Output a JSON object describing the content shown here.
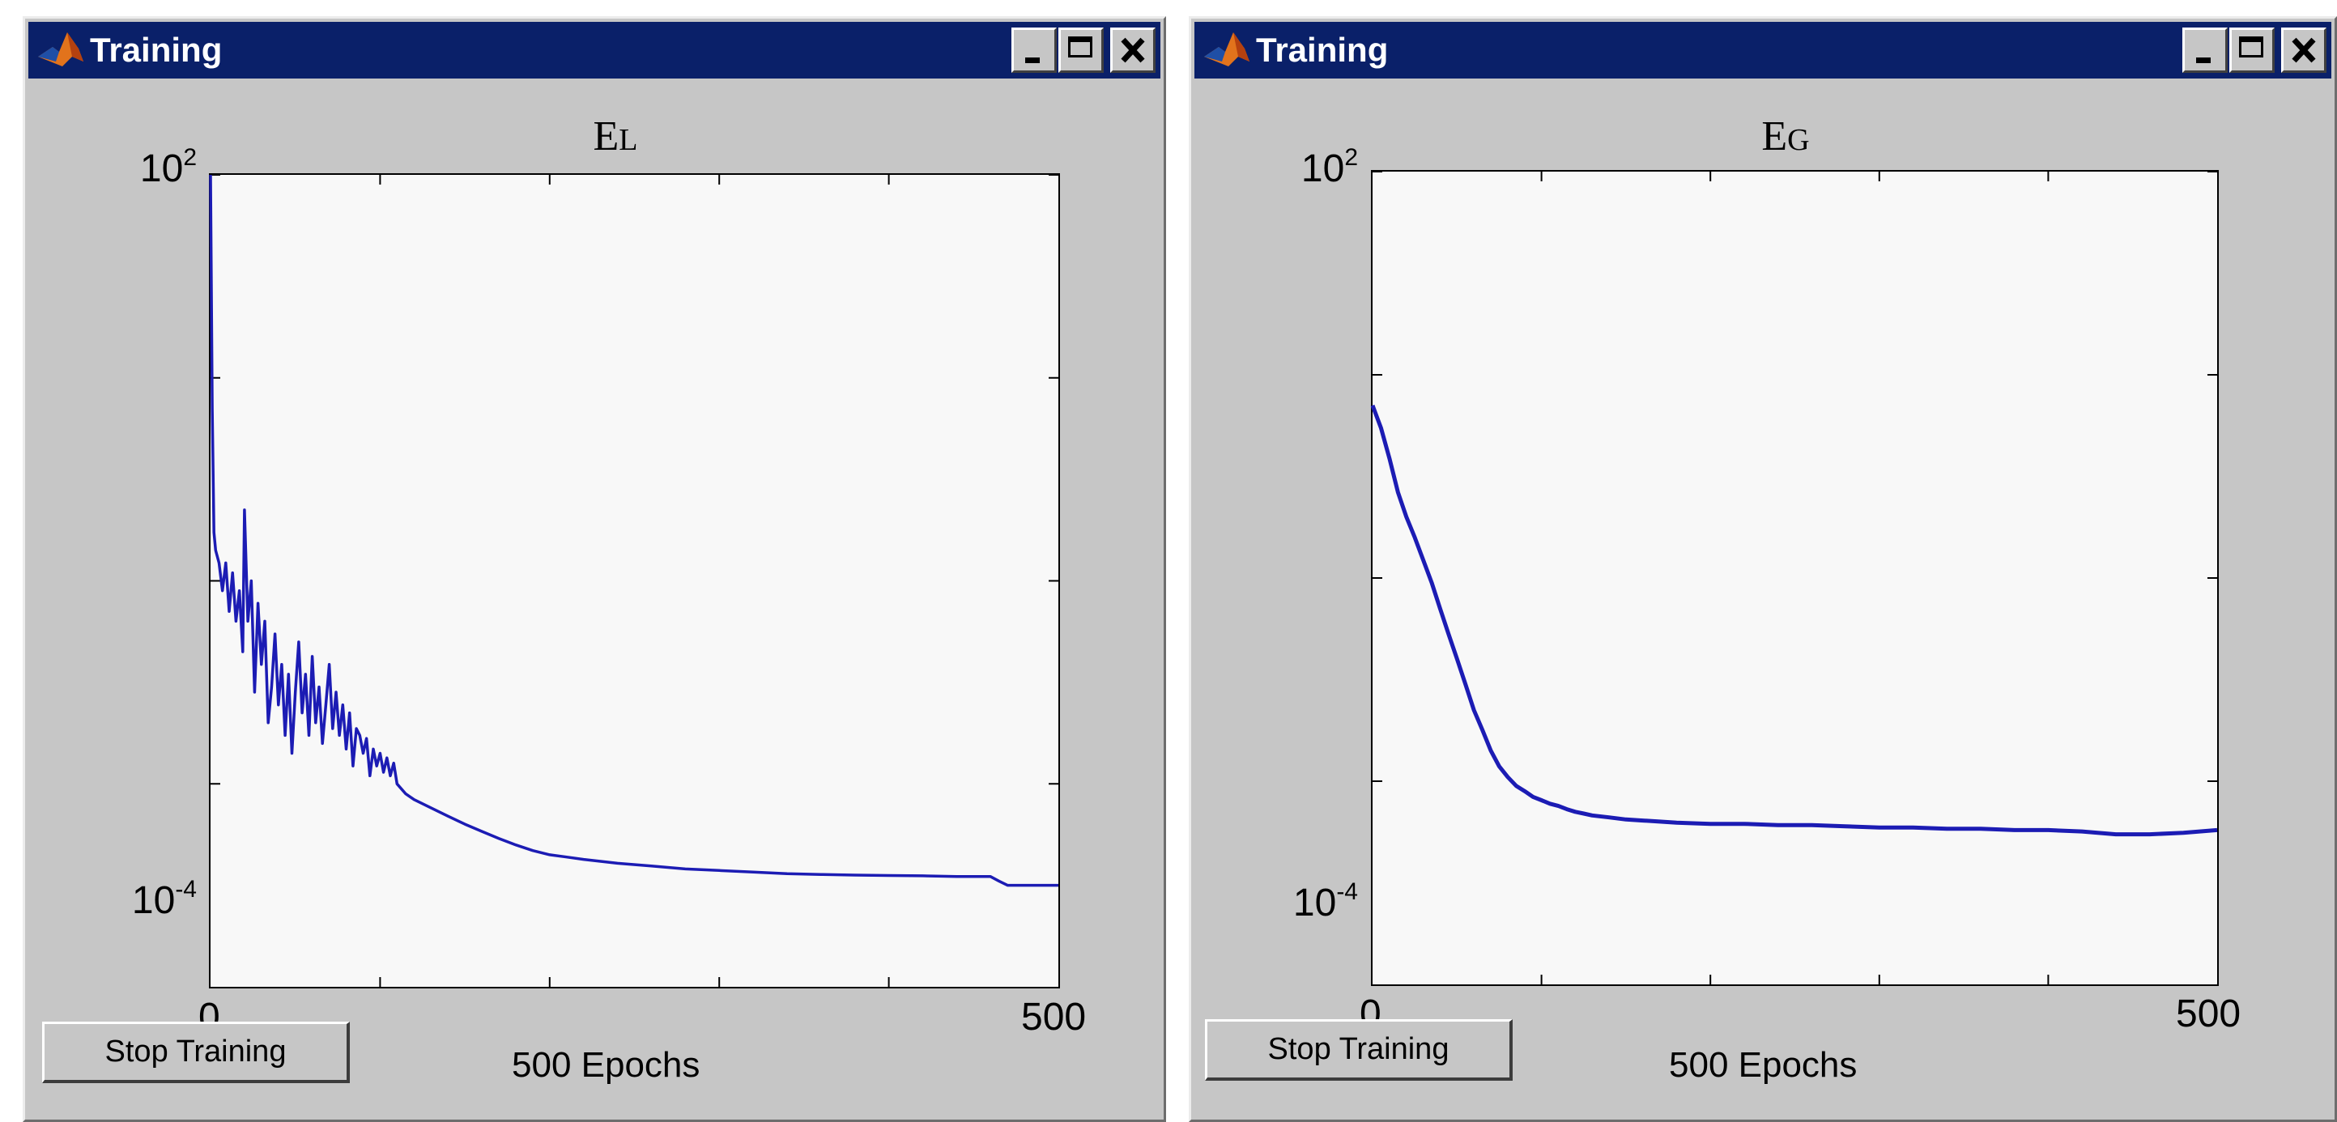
{
  "windows": [
    {
      "title": "Training",
      "plot_title": "E",
      "plot_title_subscript": "L",
      "y_tick_top": {
        "base": "10",
        "exp": "2"
      },
      "y_tick_bottom": {
        "base": "10",
        "exp": "-4"
      },
      "x_tick_left": "0",
      "x_tick_right": "500",
      "x_label": "500  Epochs",
      "stop_button": "Stop Training"
    },
    {
      "title": "Training",
      "plot_title": "E",
      "plot_title_subscript": "G",
      "y_tick_top": {
        "base": "10",
        "exp": "2"
      },
      "y_tick_bottom": {
        "base": "10",
        "exp": "-4"
      },
      "x_tick_left": "0",
      "x_tick_right": "500",
      "x_label": "500  Epochs",
      "stop_button": "Stop Training"
    }
  ],
  "icons": {
    "app": "matlab-icon",
    "minimize": "minimize-icon",
    "maximize": "maximize-icon",
    "close": "close-icon"
  },
  "colors": {
    "title_bar": "#0a2069",
    "line": "#1c1cb4",
    "window_bg": "#c6c6c6",
    "plot_bg": "#f8f8f8"
  },
  "chart_data": [
    {
      "type": "line",
      "title": "EL",
      "xlabel": "500  Epochs",
      "ylabel": "",
      "yscale": "log",
      "xlim": [
        0,
        500
      ],
      "ylim": [
        1e-06,
        100
      ],
      "x": [
        0,
        1,
        2,
        3,
        5,
        7,
        9,
        11,
        13,
        15,
        17,
        19,
        20,
        22,
        24,
        26,
        28,
        30,
        32,
        34,
        36,
        38,
        40,
        42,
        44,
        46,
        48,
        50,
        52,
        54,
        56,
        58,
        60,
        62,
        64,
        66,
        68,
        70,
        72,
        74,
        76,
        78,
        80,
        82,
        84,
        86,
        88,
        90,
        92,
        94,
        96,
        98,
        100,
        102,
        104,
        106,
        108,
        110,
        115,
        120,
        130,
        140,
        150,
        160,
        170,
        180,
        190,
        200,
        210,
        220,
        240,
        260,
        280,
        300,
        320,
        340,
        360,
        380,
        400,
        420,
        440,
        460,
        465,
        470,
        480,
        490,
        500
      ],
      "values": [
        100,
        0.5,
        0.03,
        0.02,
        0.015,
        0.008,
        0.015,
        0.005,
        0.012,
        0.004,
        0.008,
        0.002,
        0.05,
        0.004,
        0.01,
        0.0008,
        0.006,
        0.0015,
        0.004,
        0.0004,
        0.0009,
        0.003,
        0.0006,
        0.0015,
        0.0003,
        0.0012,
        0.0002,
        0.0008,
        0.0025,
        0.0005,
        0.0012,
        0.0003,
        0.0018,
        0.0004,
        0.0009,
        0.00025,
        0.0006,
        0.0015,
        0.00035,
        0.0008,
        0.0003,
        0.0006,
        0.00022,
        0.0005,
        0.00015,
        0.00035,
        0.0003,
        0.0002,
        0.00028,
        0.00012,
        0.00022,
        0.00015,
        0.0002,
        0.00013,
        0.00018,
        0.00012,
        0.00016,
        0.0001,
        8e-05,
        7e-05,
        5.8e-05,
        4.8e-05,
        4e-05,
        3.4e-05,
        2.9e-05,
        2.5e-05,
        2.2e-05,
        2e-05,
        1.9e-05,
        1.8e-05,
        1.65e-05,
        1.55e-05,
        1.45e-05,
        1.4e-05,
        1.35e-05,
        1.3e-05,
        1.28e-05,
        1.26e-05,
        1.25e-05,
        1.24e-05,
        1.22e-05,
        1.22e-05,
        1.1e-05,
        1e-05,
        1e-05,
        1e-05,
        1e-05
      ]
    },
    {
      "type": "line",
      "title": "EG",
      "xlabel": "500  Epochs",
      "ylabel": "",
      "yscale": "log",
      "xlim": [
        0,
        500
      ],
      "ylim": [
        1e-06,
        100
      ],
      "x": [
        0,
        5,
        10,
        15,
        20,
        25,
        30,
        35,
        40,
        45,
        50,
        55,
        60,
        65,
        70,
        75,
        80,
        85,
        90,
        95,
        100,
        105,
        110,
        115,
        120,
        125,
        130,
        140,
        150,
        160,
        170,
        180,
        200,
        220,
        240,
        260,
        280,
        300,
        320,
        340,
        360,
        380,
        400,
        420,
        440,
        460,
        480,
        500
      ],
      "values": [
        0.5,
        0.3,
        0.15,
        0.07,
        0.04,
        0.025,
        0.015,
        0.009,
        0.005,
        0.0028,
        0.0016,
        0.0009,
        0.0005,
        0.00032,
        0.0002,
        0.00014,
        0.00011,
        9e-05,
        8e-05,
        7e-05,
        6.5e-05,
        6e-05,
        5.7e-05,
        5.3e-05,
        5e-05,
        4.8e-05,
        4.6e-05,
        4.4e-05,
        4.2e-05,
        4.1e-05,
        4e-05,
        3.9e-05,
        3.8e-05,
        3.8e-05,
        3.7e-05,
        3.7e-05,
        3.6e-05,
        3.5e-05,
        3.5e-05,
        3.4e-05,
        3.4e-05,
        3.3e-05,
        3.3e-05,
        3.2e-05,
        3e-05,
        3e-05,
        3.1e-05,
        3.3e-05
      ]
    }
  ]
}
